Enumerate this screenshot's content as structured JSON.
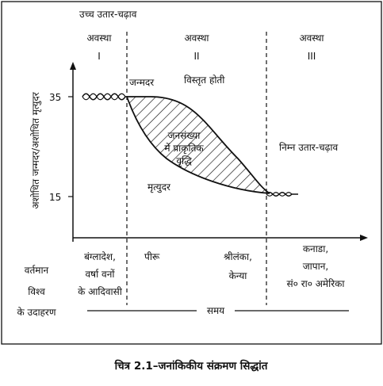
{
  "title": "चित्र 2.1–जनांकिकीय संक्रमण सिद्धांत",
  "top_label": "उच्च उतार-चढ़ाव",
  "stages": [
    {
      "heading": "अवस्था",
      "numeral": "I"
    },
    {
      "heading": "अवस्था",
      "numeral": "II"
    },
    {
      "heading": "अवस्था",
      "numeral": "III"
    }
  ],
  "y_axis": {
    "label": "अशोधित जन्मदर/अशोधित मृत्युदर",
    "ticks": [
      "35",
      "15"
    ]
  },
  "curve_labels": {
    "birth_rate": "जन्मदर",
    "death_rate": "मृत्युदर",
    "expanding": "विस्तृत होती",
    "natural_growth": [
      "जनसंख्या",
      "में प्राकृतिक",
      "वृद्धि"
    ],
    "low_fluctuation": "निम्न उतार-चढ़ाव"
  },
  "examples": {
    "row_label": [
      "वर्तमान",
      "विश्व",
      "के उदाहरण"
    ],
    "stage1": [
      "बंग्लादेश,",
      "वर्षा वनों",
      "के आदिवासी"
    ],
    "stage2a": "पीरू",
    "stage2b": [
      "श्रीलंका,",
      "केन्या"
    ],
    "stage3": [
      "कनाडा,",
      "जापान,",
      "सं० रा० अमेरिका"
    ]
  },
  "time_label": "समय"
}
